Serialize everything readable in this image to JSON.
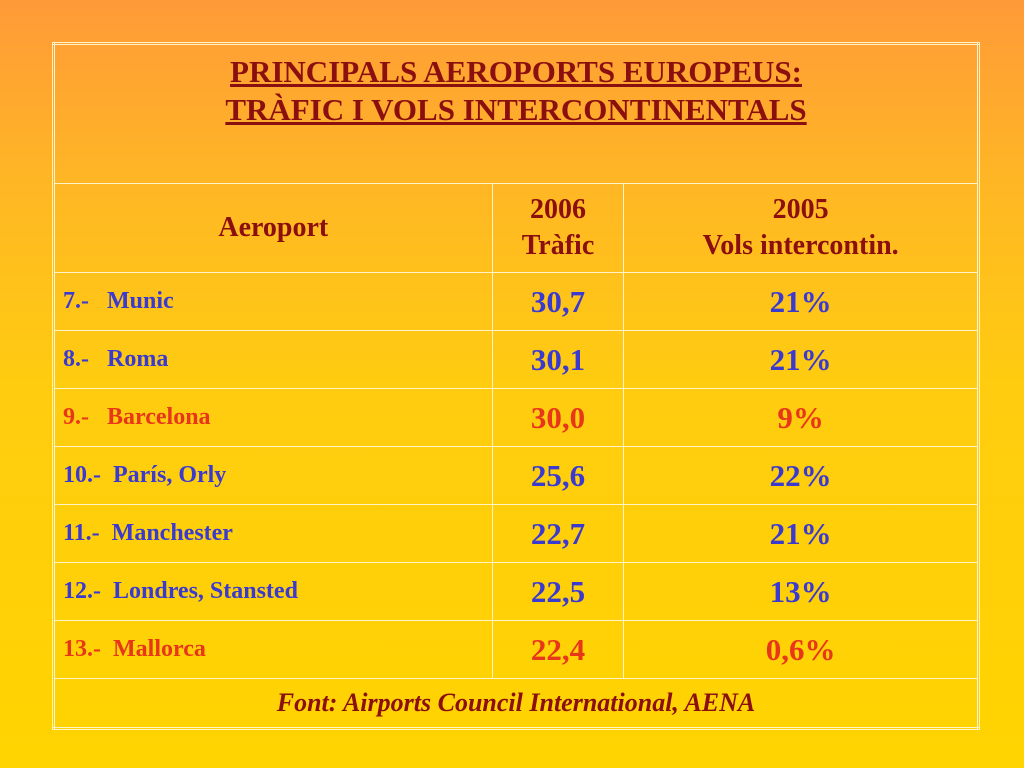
{
  "header": {
    "title": [
      "PRINCIPALS  AEROPORTS  EUROPEUS:",
      "TRÀFIC  I  VOLS  INTERCONTINENTALS"
    ]
  },
  "table": {
    "columns": [
      [
        "Aeroport"
      ],
      [
        "2006",
        "Tràfic"
      ],
      [
        "2005",
        "Vols intercontin."
      ]
    ],
    "rows": [
      {
        "airport": "7.-   Munic",
        "traffic": "30,7",
        "flights": "21%",
        "color": "#3a3ad0"
      },
      {
        "airport": "8.-   Roma",
        "traffic": "30,1",
        "flights": "21%",
        "color": "#3a3ad0"
      },
      {
        "airport": "9.-   Barcelona",
        "traffic": "30,0",
        "flights": "9%",
        "color": "#e8361a"
      },
      {
        "airport": "10.-  París, Orly",
        "traffic": "25,6",
        "flights": "22%",
        "color": "#3a3ad0"
      },
      {
        "airport": "11.-  Manchester",
        "traffic": "22,7",
        "flights": "21%",
        "color": "#3a3ad0"
      },
      {
        "airport": "12.-  Londres, Stansted",
        "traffic": "22,5",
        "flights": "13%",
        "color": "#3a3ad0"
      },
      {
        "airport": "13.-  Mallorca",
        "traffic": "22,4",
        "flights": "0,6%",
        "color": "#e8361a"
      }
    ],
    "source": "Font: Airports Council International, AENA"
  }
}
